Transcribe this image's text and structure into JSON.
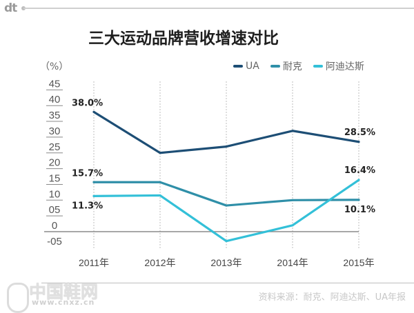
{
  "header": {
    "logo": "dt",
    "title": "三大运动品牌营收增速对比",
    "unit": "（%）"
  },
  "footer": {
    "source": "资料来源：耐克、阿迪达斯、UA年报",
    "watermark_name": "中国鞋网",
    "watermark_url": "www.cnxz.cn"
  },
  "colors": {
    "UA": "#1d4e75",
    "耐克": "#2f8fa8",
    "阿迪达斯": "#33c0d8",
    "grid": "#bdbdbd",
    "axis": "#8a8a8a"
  },
  "chart_data": {
    "type": "line",
    "title": "三大运动品牌营收增速对比",
    "xlabel": "",
    "ylabel": "（%）",
    "x": [
      "2011年",
      "2012年",
      "2013年",
      "2014年",
      "2015年"
    ],
    "yticks": [
      "45",
      "40",
      "35",
      "30",
      "25",
      "20",
      "15",
      "10",
      "05",
      "0",
      "-05"
    ],
    "ylim": [
      -5,
      45
    ],
    "grid": "vertical dashed",
    "legend": "top-right",
    "series": [
      {
        "name": "UA",
        "values": [
          38.0,
          25.0,
          27.0,
          32.0,
          28.5
        ],
        "labels": [
          "38.0%",
          null,
          null,
          null,
          "28.5%"
        ]
      },
      {
        "name": "耐克",
        "values": [
          15.7,
          15.7,
          8.3,
          10.0,
          10.1
        ],
        "labels": [
          "15.7%",
          null,
          null,
          null,
          "10.1%"
        ]
      },
      {
        "name": "阿迪达斯",
        "values": [
          11.3,
          11.5,
          -3.0,
          2.0,
          16.4
        ],
        "labels": [
          "11.3%",
          null,
          null,
          null,
          "16.4%"
        ]
      }
    ]
  }
}
